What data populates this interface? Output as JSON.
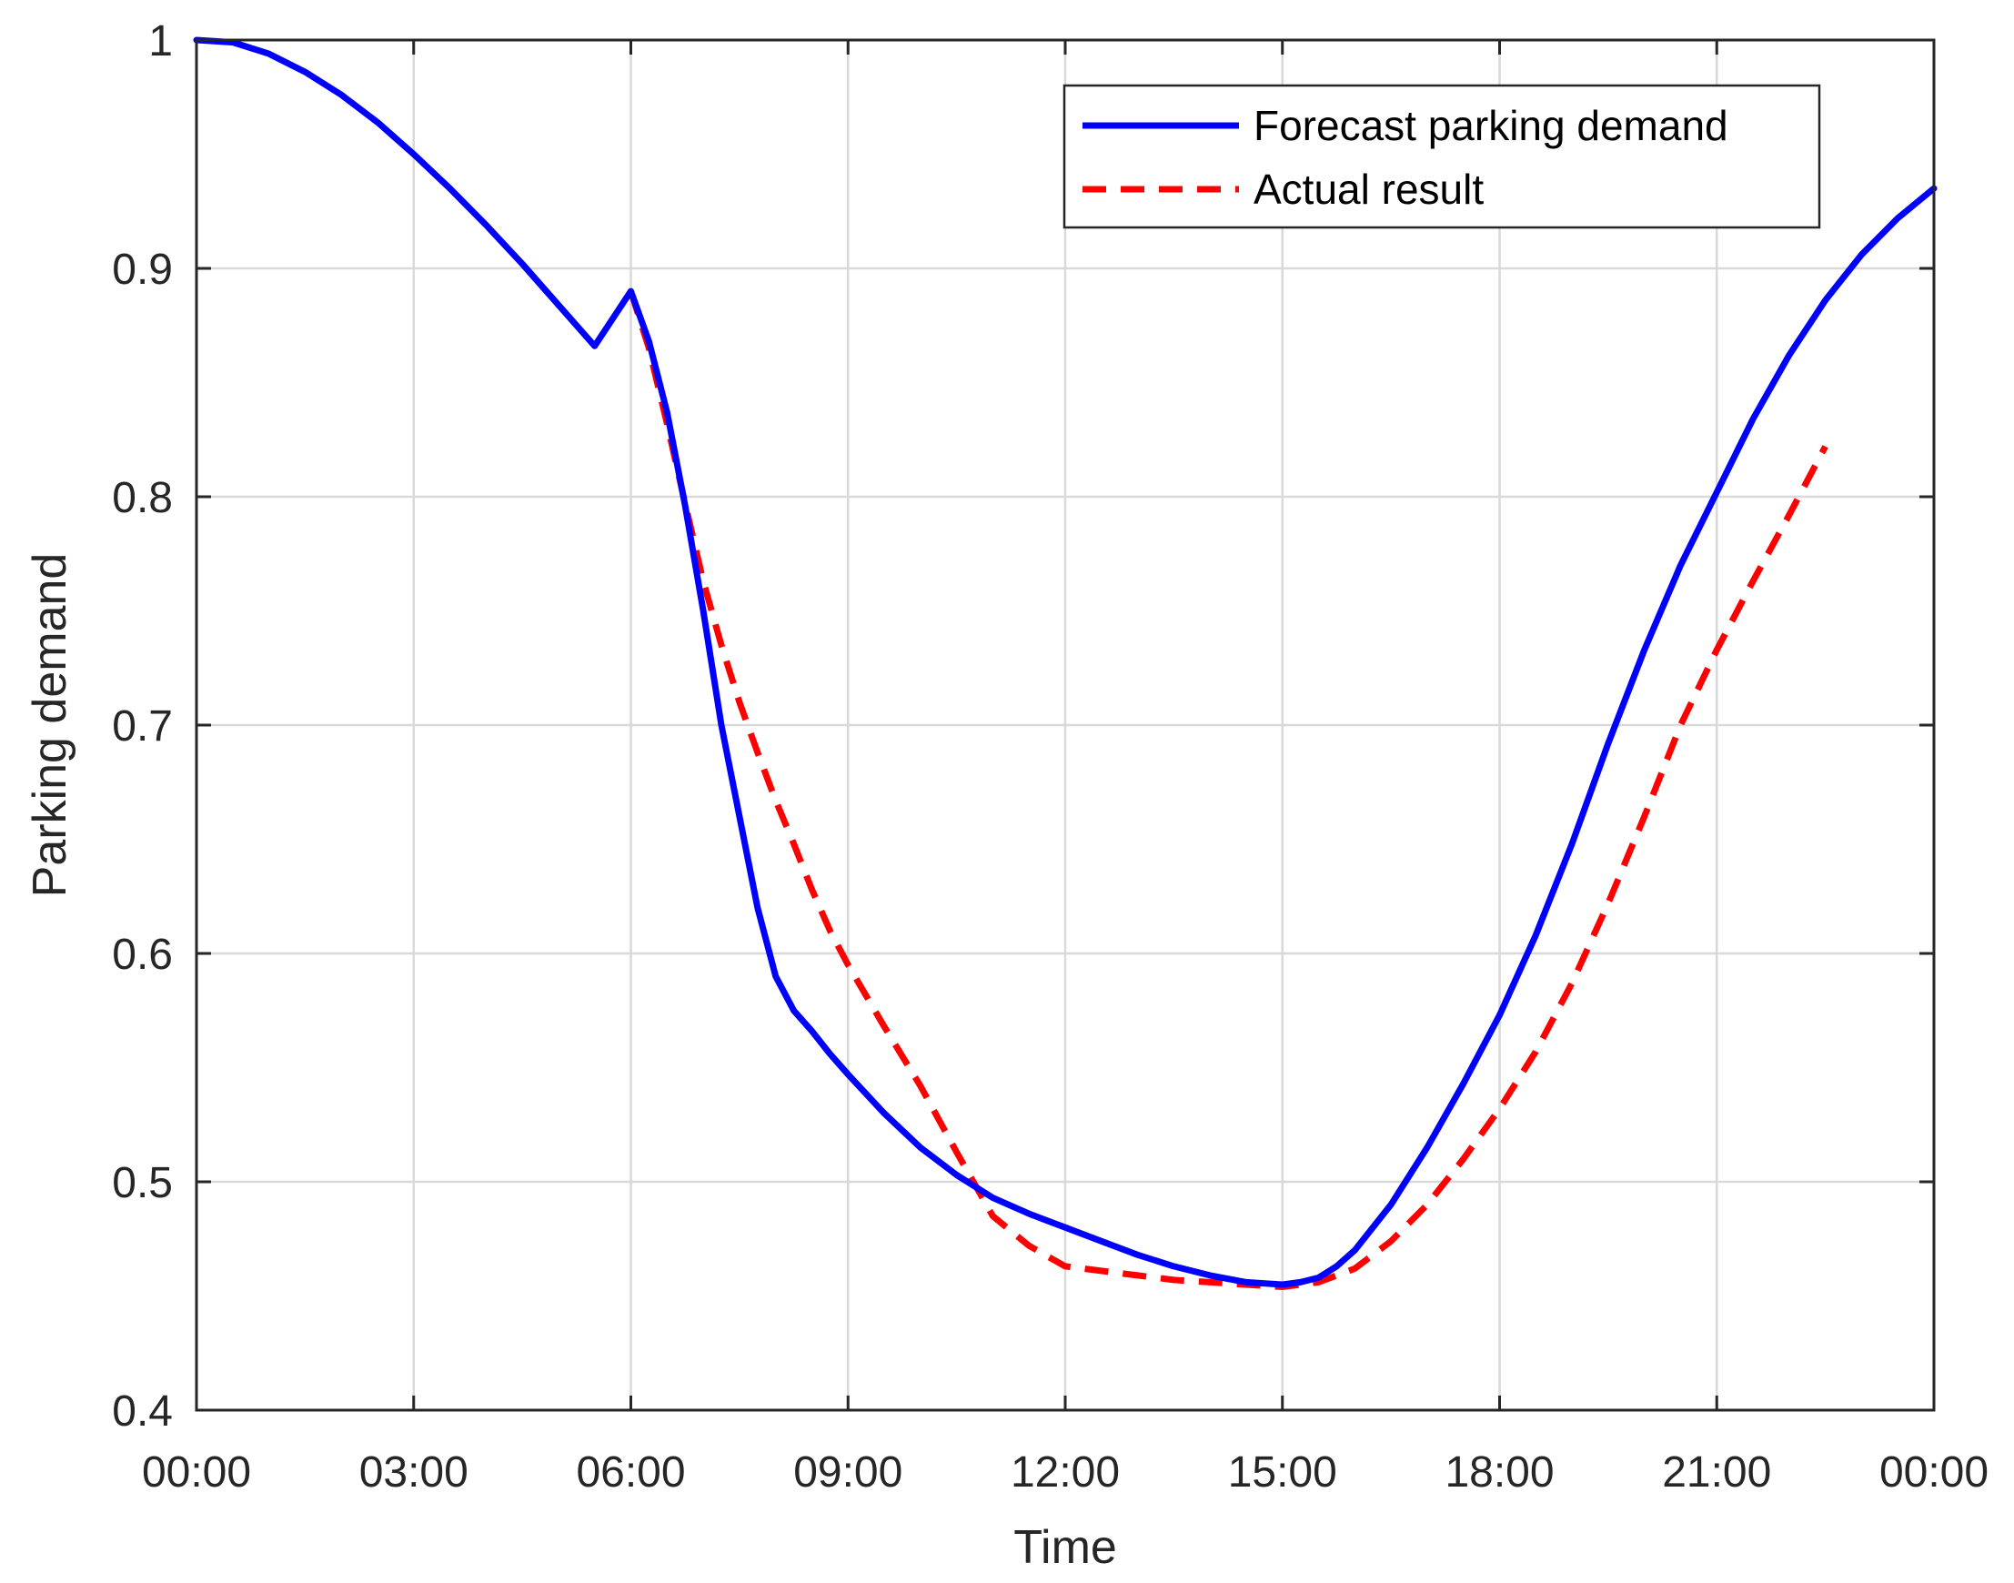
{
  "chart_data": {
    "type": "line",
    "xlabel": "Time",
    "ylabel": "Parking demand",
    "xlim": [
      0,
      24
    ],
    "ylim": [
      0.4,
      1
    ],
    "x_ticks": [
      0,
      3,
      6,
      9,
      12,
      15,
      18,
      21,
      24
    ],
    "x_tick_labels": [
      "00:00",
      "03:00",
      "06:00",
      "09:00",
      "12:00",
      "15:00",
      "18:00",
      "21:00",
      "00:00"
    ],
    "y_ticks": [
      0.4,
      0.5,
      0.6,
      0.7,
      0.8,
      0.9,
      1
    ],
    "y_tick_labels": [
      "0.4",
      "0.5",
      "0.6",
      "0.7",
      "0.8",
      "0.9",
      "1"
    ],
    "grid": true,
    "legend_position": "top-right",
    "series": [
      {
        "name": "Forecast parking demand",
        "color": "#0000ff",
        "style": "solid",
        "x": [
          0,
          0.5,
          1,
          1.5,
          2,
          2.5,
          3,
          3.5,
          4,
          4.5,
          5,
          5.5,
          6,
          6.25,
          6.5,
          6.75,
          7,
          7.25,
          7.5,
          7.75,
          8,
          8.25,
          8.5,
          8.75,
          9,
          9.5,
          10,
          10.5,
          11,
          11.5,
          12,
          12.5,
          13,
          13.5,
          14,
          14.5,
          15,
          15.25,
          15.5,
          15.75,
          16,
          16.5,
          17,
          17.5,
          18,
          18.5,
          19,
          19.5,
          20,
          20.5,
          21,
          21.5,
          22,
          22.5,
          23,
          23.5,
          24
        ],
        "y": [
          1,
          0.999,
          0.994,
          0.986,
          0.976,
          0.964,
          0.95,
          0.935,
          0.919,
          0.902,
          0.884,
          0.866,
          0.89,
          0.868,
          0.837,
          0.796,
          0.75,
          0.7,
          0.66,
          0.62,
          0.59,
          0.575,
          0.566,
          0.556,
          0.547,
          0.53,
          0.515,
          0.503,
          0.493,
          0.486,
          0.48,
          0.474,
          0.468,
          0.463,
          0.459,
          0.456,
          0.455,
          0.456,
          0.458,
          0.463,
          0.47,
          0.49,
          0.515,
          0.543,
          0.573,
          0.608,
          0.648,
          0.692,
          0.733,
          0.77,
          0.802,
          0.834,
          0.862,
          0.886,
          0.906,
          0.922,
          0.935
        ]
      },
      {
        "name": "Actual result",
        "color": "#ff0000",
        "style": "dashed",
        "x": [
          6,
          6.25,
          6.5,
          6.75,
          7,
          7.25,
          7.5,
          7.75,
          8,
          8.25,
          8.5,
          8.75,
          9,
          9.5,
          10,
          10.5,
          11,
          11.5,
          12,
          12.5,
          13,
          13.5,
          14,
          14.5,
          15,
          15.5,
          16,
          16.5,
          17,
          17.5,
          18,
          18.5,
          19,
          19.5,
          20,
          20.5,
          21,
          21.5,
          22,
          22.5
        ],
        "y": [
          0.89,
          0.865,
          0.832,
          0.797,
          0.763,
          0.735,
          0.71,
          0.688,
          0.667,
          0.648,
          0.628,
          0.61,
          0.595,
          0.568,
          0.542,
          0.513,
          0.485,
          0.472,
          0.463,
          0.461,
          0.459,
          0.457,
          0.456,
          0.455,
          0.454,
          0.456,
          0.462,
          0.474,
          0.49,
          0.51,
          0.532,
          0.557,
          0.587,
          0.622,
          0.66,
          0.7,
          0.733,
          0.763,
          0.792,
          0.822
        ]
      }
    ]
  }
}
